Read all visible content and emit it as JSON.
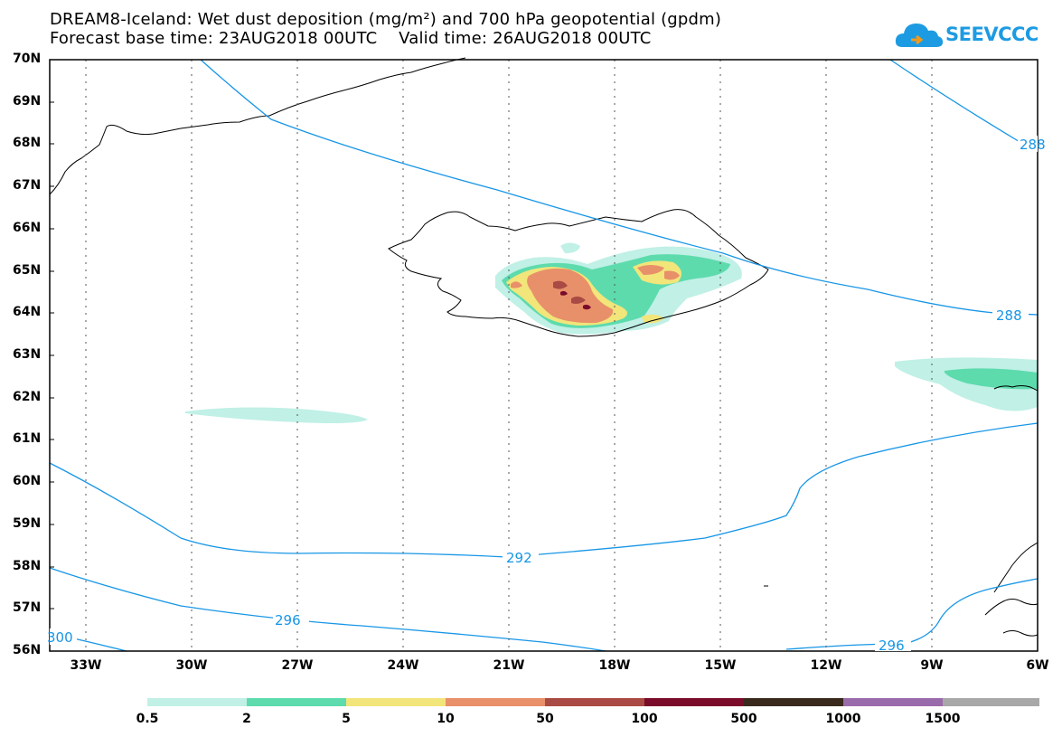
{
  "title": {
    "line1": "DREAM8-Iceland: Wet dust deposition (mg/m²) and 700 hPa geopotential (gpdm)",
    "line2": "Forecast base time: 23AUG2018 00UTC    Valid time: 26AUG2018 00UTC"
  },
  "logo": {
    "text": "SEEVCCC",
    "icon": "cloud-icon",
    "color": "#1d9be2"
  },
  "axes": {
    "lat_labels": [
      "70N",
      "69N",
      "68N",
      "67N",
      "66N",
      "65N",
      "64N",
      "63N",
      "62N",
      "61N",
      "60N",
      "59N",
      "58N",
      "57N",
      "56N"
    ],
    "lon_labels": [
      "33W",
      "30W",
      "27W",
      "24W",
      "21W",
      "18W",
      "15W",
      "12W",
      "9W",
      "6W"
    ]
  },
  "contours": {
    "color": "#1796e6",
    "labels": [
      "288",
      "288",
      "292",
      "296",
      "300",
      "296"
    ]
  },
  "colorbar": {
    "colors": [
      "#c0f0e6",
      "#5ddbad",
      "#f2e57a",
      "#e8906a",
      "#a94a44",
      "#7a0b2a",
      "#3a2a1e",
      "#9a6bab",
      "#a8a8a8"
    ],
    "labels": [
      "0.5",
      "2",
      "5",
      "10",
      "50",
      "100",
      "500",
      "1000",
      "1500"
    ]
  }
}
